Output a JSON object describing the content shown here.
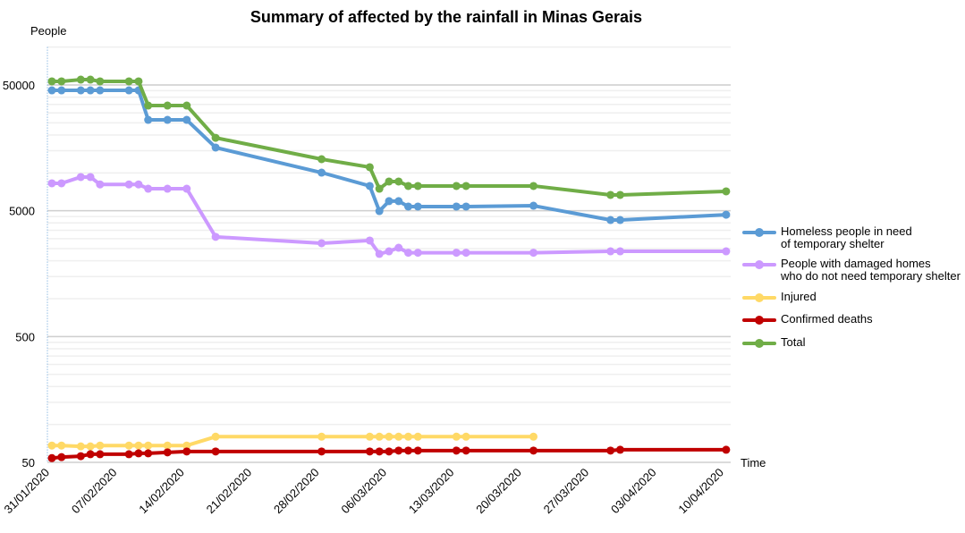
{
  "chart_data": {
    "type": "line",
    "title": "Summary of affected by the rainfall in Minas Gerais",
    "ylabel": "People",
    "xlabel": "Time",
    "yscale": "log",
    "ylim": [
      50,
      100000
    ],
    "yticks": [
      "50",
      "500",
      "5000",
      "50000"
    ],
    "ytick_values": [
      50,
      500,
      5000,
      50000
    ],
    "xticks": [
      "31/01/2020",
      "07/02/2020",
      "14/02/2020",
      "21/02/2020",
      "28/02/2020",
      "06/03/2020",
      "13/03/2020",
      "20/03/2020",
      "27/03/2020",
      "03/04/2020",
      "10/04/2020"
    ],
    "xtick_days": [
      0,
      7,
      14,
      21,
      28,
      35,
      42,
      49,
      56,
      63,
      70
    ],
    "x_days_since_31_01_2020": [
      0,
      1,
      3,
      4,
      5,
      8,
      9,
      10,
      12,
      14,
      17,
      28,
      33,
      34,
      35,
      36,
      37,
      38,
      42,
      43,
      50,
      58,
      59,
      70
    ],
    "legend_position": "right",
    "series": [
      {
        "name": "Homeless people in need of temporary shelter",
        "legend_lines": [
          "Homeless people in need",
          "of temporary shelter"
        ],
        "color": "#5b9bd5",
        "values": [
          45300,
          45300,
          45300,
          45300,
          45300,
          45300,
          45300,
          26400,
          26400,
          26400,
          15900,
          10050,
          7870,
          4970,
          5960,
          5960,
          5400,
          5400,
          5400,
          5400,
          5480,
          4220,
          4220,
          4650
        ]
      },
      {
        "name": "People with damaged homes who do not need temporary shelter",
        "legend_lines": [
          "People with damaged homes",
          "who do not need temporary shelter"
        ],
        "color": "#cc99ff",
        "values": [
          8260,
          8260,
          9270,
          9270,
          8100,
          8100,
          8100,
          7480,
          7480,
          7480,
          3100,
          2760,
          2900,
          2270,
          2380,
          2540,
          2320,
          2320,
          2320,
          2320,
          2320,
          2380,
          2380,
          2380
        ]
      },
      {
        "name": "Injured",
        "legend_lines": [
          "Injured"
        ],
        "color": "#ffd966",
        "values": [
          68,
          68,
          67,
          67,
          68,
          68,
          68,
          68,
          68,
          68,
          80,
          80,
          80,
          80,
          80,
          80,
          80,
          80,
          80,
          80,
          80,
          null,
          null,
          null
        ]
      },
      {
        "name": "Confirmed deaths",
        "legend_lines": [
          "Confirmed deaths"
        ],
        "color": "#c00000",
        "values": [
          54,
          55,
          56,
          58,
          58,
          58,
          59,
          59,
          60,
          61,
          61,
          61,
          61,
          61,
          61,
          62,
          62,
          62,
          62,
          62,
          62,
          62,
          63,
          63
        ]
      },
      {
        "name": "Total",
        "legend_lines": [
          "Total"
        ],
        "color": "#70ad47",
        "values": [
          53400,
          53400,
          55100,
          55100,
          53400,
          53400,
          53400,
          34300,
          34300,
          34300,
          19000,
          12850,
          11100,
          7480,
          8540,
          8540,
          7870,
          7870,
          7870,
          7870,
          7870,
          6680,
          6680,
          7130
        ]
      }
    ]
  }
}
